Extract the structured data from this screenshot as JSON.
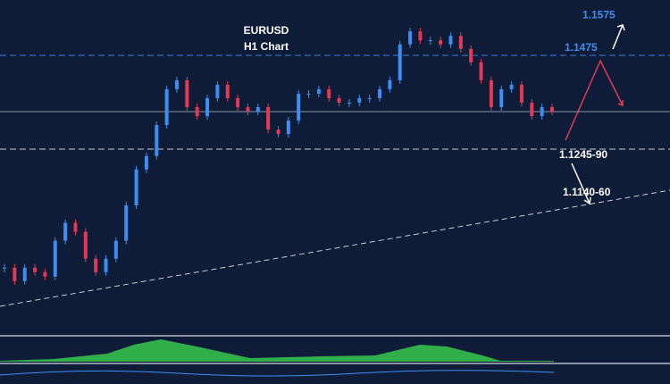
{
  "chart_data": {
    "type": "candlestick",
    "title": "EURUSD",
    "subtitle": "H1 Chart",
    "values": [
      1.0954,
      1.0921,
      1.0954,
      1.0943,
      1.0932,
      1.102,
      1.1064,
      1.1042,
      1.0976,
      1.0943,
      1.0976,
      1.102,
      1.1107,
      1.1195,
      1.1228,
      1.1304,
      1.1392,
      1.1414,
      1.1348,
      1.1326,
      1.137,
      1.1403,
      1.137,
      1.1348,
      1.1337,
      1.1348,
      1.1293,
      1.1282,
      1.1315,
      1.1381,
      1.1381,
      1.1392,
      1.137,
      1.1359,
      1.1359,
      1.137,
      1.137,
      1.1392,
      1.1414,
      1.1502,
      1.1534,
      1.1512,
      1.1512,
      1.1502,
      1.1523,
      1.1491,
      1.1458,
      1.1414,
      1.1348,
      1.1392,
      1.1403,
      1.1359,
      1.1326,
      1.1348,
      1.1337
    ],
    "up_color": "#3d8ef0",
    "down_color": "#e23a55",
    "ylim": [
      1.08,
      1.1611
    ],
    "current_price": 1.1337,
    "levels": [
      {
        "value": 1.1475,
        "label": "1.1475",
        "color": "#3d7fd9"
      },
      {
        "value": 1.1245,
        "label": "1.1245-90",
        "color": "#c8ccd4"
      }
    ],
    "targets": [
      {
        "value": 1.1575,
        "label": "1.1575"
      },
      {
        "value": 1.114,
        "label": "1.1140-60"
      }
    ]
  }
}
